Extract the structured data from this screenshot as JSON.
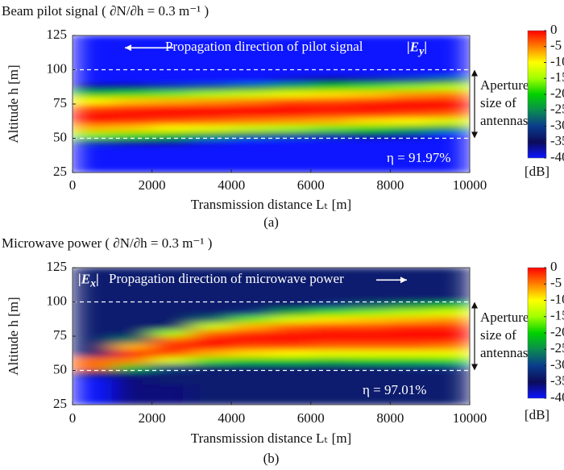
{
  "chart_data": [
    {
      "type": "heatmap",
      "title": "Beam pilot signal ( ∂N/∂h = 0.3  m⁻¹ )",
      "x_label": "Transmission distance  Lₜ  [m]",
      "y_label": "Altitude  h  [m]",
      "caption": "(a)",
      "x": [
        500,
        1500,
        2500,
        3500,
        4500,
        5500,
        6500,
        7500,
        8500,
        9500
      ],
      "y": [
        27.5,
        32.5,
        37.5,
        42.5,
        47.5,
        52.5,
        57.5,
        62.5,
        67.5,
        72.5,
        77.5,
        82.5,
        87.5,
        92.5,
        97.5,
        102.5,
        107.5,
        112.5,
        117.5,
        122.5
      ],
      "z": [
        [
          -40,
          -40,
          -40,
          -40,
          -30,
          -16,
          -7,
          -1,
          0,
          -3,
          -10,
          -21,
          -36,
          -40,
          -40,
          -40,
          -40,
          -40,
          -40,
          -40
        ],
        [
          -40,
          -40,
          -40,
          -40,
          -33,
          -18,
          -8,
          -2,
          0,
          -2,
          -8,
          -19,
          -33,
          -40,
          -40,
          -40,
          -40,
          -40,
          -40,
          -40
        ],
        [
          -40,
          -40,
          -40,
          -40,
          -36,
          -21,
          -10,
          -3,
          0,
          -1,
          -7,
          -17,
          -30,
          -40,
          -40,
          -40,
          -40,
          -40,
          -40,
          -40
        ],
        [
          -40,
          -40,
          -40,
          -40,
          -39,
          -23,
          -11,
          -4,
          0,
          -1,
          -6,
          -15,
          -28,
          -40,
          -40,
          -40,
          -40,
          -40,
          -40,
          -40
        ],
        [
          -40,
          -40,
          -40,
          -40,
          -40,
          -26,
          -13,
          -5,
          -1,
          0,
          -5,
          -13,
          -25,
          -40,
          -40,
          -40,
          -40,
          -40,
          -40,
          -40
        ],
        [
          -40,
          -40,
          -40,
          -40,
          -40,
          -28,
          -15,
          -6,
          -1,
          0,
          -3,
          -11,
          -22,
          -38,
          -40,
          -40,
          -40,
          -40,
          -40,
          -40
        ],
        [
          -40,
          -40,
          -40,
          -40,
          -40,
          -31,
          -17,
          -7,
          -2,
          0,
          -3,
          -9,
          -20,
          -35,
          -40,
          -40,
          -40,
          -40,
          -40,
          -40
        ],
        [
          -40,
          -40,
          -40,
          -40,
          -40,
          -34,
          -19,
          -9,
          -2,
          0,
          -2,
          -8,
          -18,
          -32,
          -40,
          -40,
          -40,
          -40,
          -40,
          -40
        ],
        [
          -40,
          -40,
          -40,
          -40,
          -40,
          -37,
          -22,
          -10,
          -3,
          0,
          -1,
          -6,
          -16,
          -29,
          -40,
          -40,
          -40,
          -40,
          -40,
          -40
        ],
        [
          -40,
          -40,
          -40,
          -40,
          -40,
          -40,
          -24,
          -12,
          -4,
          0,
          -1,
          -5,
          -14,
          -26,
          -40,
          -40,
          -40,
          -40,
          -40,
          -40
        ]
      ],
      "xlim": [
        0,
        10000
      ],
      "ylim": [
        25,
        125
      ],
      "xticks": [
        0,
        2000,
        4000,
        6000,
        8000,
        10000
      ],
      "yticks": [
        25,
        50,
        75,
        100,
        125
      ],
      "zlim": [
        -40,
        0
      ],
      "zticks": [
        0,
        -5,
        -10,
        -15,
        -20,
        -25,
        -30,
        -35,
        -40
      ],
      "colorbar_label": "[dB]",
      "colors": [
        "#0a14ff",
        "#0c0c5a",
        "#0a3c8c",
        "#0a8c50",
        "#00d200",
        "#a0ff00",
        "#ffff00",
        "#ff8000",
        "#ff0000"
      ],
      "hlines": [
        50,
        100
      ],
      "arrow": "left",
      "annotations": {
        "direction": "Propagation direction of pilot signal",
        "field": [
          "|E",
          "y",
          "|"
        ],
        "efficiency": "η = 91.97%",
        "aperture": [
          "Aperture",
          "size of",
          "antennas"
        ]
      }
    },
    {
      "type": "heatmap",
      "title": "Microwave power ( ∂N/∂h = 0.3  m⁻¹ )",
      "x_label": "Transmission distance  Lₜ  [m]",
      "y_label": "Altitude  h  [m]",
      "caption": "(b)",
      "x": [
        500,
        1500,
        2500,
        3500,
        4500,
        5500,
        6500,
        7500,
        8500,
        9500
      ],
      "y": [
        27.5,
        32.5,
        37.5,
        42.5,
        47.5,
        52.5,
        57.5,
        62.5,
        67.5,
        72.5,
        77.5,
        82.5,
        87.5,
        92.5,
        97.5,
        102.5,
        107.5,
        112.5,
        117.5,
        122.5
      ],
      "z": [
        [
          -40,
          -40,
          -40,
          -40,
          -33,
          -4,
          -4,
          -33,
          -33,
          -33,
          -33,
          -33,
          -33,
          -33,
          -33,
          -33,
          -33,
          -33,
          -33,
          -33
        ],
        [
          -36,
          -36,
          -36,
          -36,
          -33,
          -21,
          -5,
          0,
          -7,
          -26,
          -33,
          -33,
          -33,
          -33,
          -33,
          -33,
          -33,
          -33,
          -33,
          -33
        ],
        [
          -36,
          -36,
          -36,
          -33,
          -33,
          -29,
          -12,
          -3,
          0,
          -4,
          -15,
          -33,
          -33,
          -33,
          -33,
          -33,
          -33,
          -33,
          -33,
          -33
        ],
        [
          -33,
          -33,
          -33,
          -33,
          -33,
          -33,
          -18,
          -7,
          -1,
          0,
          -4,
          -13,
          -27,
          -33,
          -33,
          -33,
          -33,
          -33,
          -33,
          -33
        ],
        [
          -33,
          -33,
          -33,
          -33,
          -33,
          -33,
          -20,
          -9,
          -3,
          0,
          -2,
          -7,
          -17,
          -31,
          -33,
          -33,
          -33,
          -33,
          -33,
          -33
        ],
        [
          -33,
          -33,
          -33,
          -33,
          -33,
          -33,
          -20,
          -10,
          -3,
          0,
          -1,
          -4,
          -12,
          -23,
          -33,
          -33,
          -33,
          -33,
          -33,
          -33
        ],
        [
          -33,
          -33,
          -33,
          -33,
          -33,
          -33,
          -21,
          -11,
          -4,
          -1,
          0,
          -3,
          -9,
          -18,
          -31,
          -33,
          -33,
          -33,
          -33,
          -33
        ],
        [
          -33,
          -33,
          -33,
          -33,
          -33,
          -33,
          -20,
          -11,
          -4,
          -1,
          0,
          -3,
          -8,
          -16,
          -27,
          -33,
          -33,
          -33,
          -33,
          -33
        ],
        [
          -33,
          -33,
          -33,
          -33,
          -33,
          -32,
          -20,
          -11,
          -4,
          -1,
          0,
          -2,
          -7,
          -14,
          -24,
          -33,
          -33,
          -33,
          -33,
          -33
        ],
        [
          -33,
          -33,
          -33,
          -33,
          -33,
          -31,
          -19,
          -11,
          -5,
          -1,
          0,
          -2,
          -6,
          -12,
          -21,
          -33,
          -33,
          -33,
          -33,
          -33
        ]
      ],
      "xlim": [
        0,
        10000
      ],
      "ylim": [
        25,
        125
      ],
      "xticks": [
        0,
        2000,
        4000,
        6000,
        8000,
        10000
      ],
      "yticks": [
        25,
        50,
        75,
        100,
        125
      ],
      "zlim": [
        -40,
        0
      ],
      "zticks": [
        0,
        -5,
        -10,
        -15,
        -20,
        -25,
        -30,
        -35,
        -40
      ],
      "colorbar_label": "[dB]",
      "colors": [
        "#0a14ff",
        "#0c0c5a",
        "#0a3c8c",
        "#0a8c50",
        "#00d200",
        "#a0ff00",
        "#ffff00",
        "#ff8000",
        "#ff0000"
      ],
      "hlines": [
        50,
        100
      ],
      "arrow": "right",
      "annotations": {
        "direction": "Propagation direction of microwave power",
        "field": [
          "|E",
          "x",
          "|"
        ],
        "efficiency": "η = 97.01%",
        "aperture": [
          "Aperture",
          "size of",
          "antennas"
        ]
      }
    }
  ]
}
